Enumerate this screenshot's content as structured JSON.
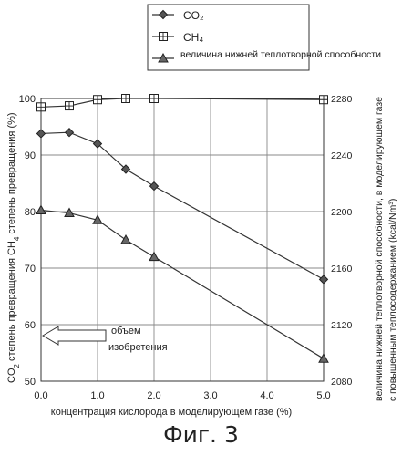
{
  "chart_data": {
    "type": "line",
    "caption": "Фиг. 3",
    "x": [
      0.0,
      0.5,
      1.0,
      1.5,
      2.0,
      5.0
    ],
    "xticks": [
      "0.0",
      "1.0",
      "2.0",
      "3.0",
      "4.0",
      "5.0"
    ],
    "xlim": [
      0,
      5
    ],
    "xlabel": "концентрация кислорода в моделирующем газе (%)",
    "ylim_left": [
      50,
      100
    ],
    "yticks_left": [
      "50",
      "60",
      "70",
      "80",
      "90",
      "100"
    ],
    "ylabel_left_a": "CO",
    "ylabel_left_a_sub": "2",
    "ylabel_left_b": " степень превращения  CH",
    "ylabel_left_b_sub": "4",
    "ylabel_left_c": " степень превращения (%)",
    "ylim_right": [
      2080,
      2280
    ],
    "yticks_right": [
      "2080",
      "2120",
      "2160",
      "2200",
      "2240",
      "2280"
    ],
    "ylabel_right_1": "величина нижней теплотворной способности, в  моделирующем газе",
    "ylabel_right_2": "с повышенным теплосодержанием (kcal/Nm³)",
    "series": [
      {
        "name": "CO₂",
        "marker": "diamond",
        "axis": "left",
        "values": [
          93.8,
          94.0,
          92.0,
          87.5,
          84.5,
          68.0
        ]
      },
      {
        "name": "CH₄",
        "marker": "square",
        "axis": "left",
        "values": [
          98.5,
          98.7,
          99.8,
          100.0,
          100.0,
          99.8
        ]
      },
      {
        "name": "величина нижней теплотворной способности",
        "marker": "triangle",
        "axis": "right",
        "values": [
          2201,
          2199,
          2194,
          2180,
          2168,
          2096
        ]
      }
    ],
    "annotation": {
      "line1": "объем",
      "line2": "изобретения"
    },
    "grid": true,
    "legend_position": "top"
  }
}
